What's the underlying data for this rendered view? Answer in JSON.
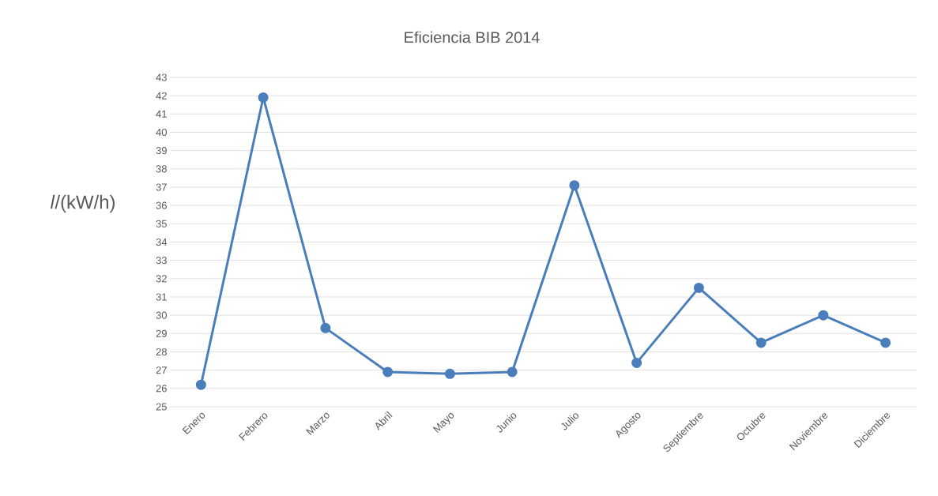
{
  "chart_data": {
    "type": "line",
    "title": "Eficiencia BIB 2014",
    "ylabel": "*l*/(kW/h)",
    "categories": [
      "Enero",
      "Febrero",
      "Marzo",
      "Abril",
      "Mayo",
      "Junio",
      "Julio",
      "Agosto",
      "Septiembre",
      "Octubre",
      "Noviembre",
      "Diciembre"
    ],
    "series": [
      {
        "color": "#4a7ebb",
        "values": [
          26.2,
          41.9,
          29.3,
          26.9,
          26.8,
          26.9,
          37.1,
          27.4,
          31.5,
          28.5,
          30.0,
          28.5
        ]
      }
    ],
    "ylim": [
      25,
      43
    ],
    "yticks": [
      25,
      26,
      27,
      28,
      29,
      30,
      31,
      32,
      33,
      34,
      35,
      36,
      37,
      38,
      39,
      40,
      41,
      42,
      43
    ],
    "grid": "y",
    "marker": "circle",
    "line_style": "solid"
  }
}
